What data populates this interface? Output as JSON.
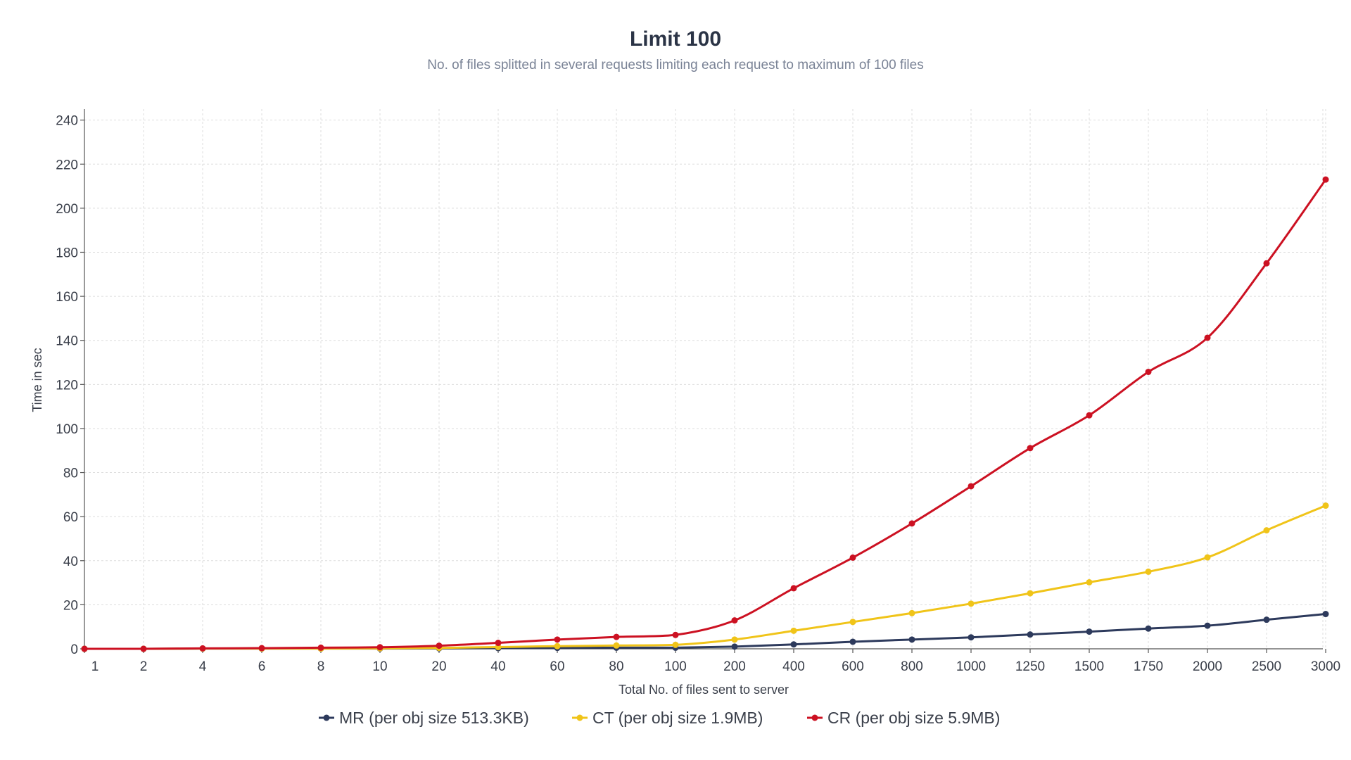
{
  "chart_data": {
    "type": "line",
    "title": "Limit 100",
    "subtitle": "No. of files splitted in several requests limiting each request to maximum of 100 files",
    "xlabel": "Total No. of files sent to server",
    "ylabel": "Time in sec",
    "ylim": [
      0,
      245
    ],
    "yticks": [
      0,
      20,
      40,
      60,
      80,
      100,
      120,
      140,
      160,
      180,
      200,
      220,
      240
    ],
    "grid": true,
    "legend_position": "bottom-center",
    "categories": [
      "1",
      "2",
      "4",
      "6",
      "8",
      "10",
      "20",
      "40",
      "60",
      "80",
      "100",
      "200",
      "400",
      "600",
      "800",
      "1000",
      "1250",
      "1500",
      "1750",
      "2000",
      "2500",
      "3000"
    ],
    "series": [
      {
        "name": "MR (per obj size 513.3KB)",
        "color": "#2d3a5c",
        "values": [
          0,
          0,
          0.1,
          0.1,
          0.1,
          0.1,
          0.2,
          0.3,
          0.4,
          0.5,
          0.5,
          1,
          2,
          3.2,
          4.2,
          5.2,
          6.5,
          7.8,
          9.2,
          10.5,
          13.2,
          15.8
        ]
      },
      {
        "name": "CT (per obj size 1.9MB)",
        "color": "#f0c419",
        "values": [
          0,
          0,
          0.1,
          0.1,
          0.1,
          0.2,
          0.4,
          0.8,
          1.2,
          1.5,
          1.8,
          4.2,
          8.2,
          12.2,
          16.2,
          20.5,
          25.2,
          30.2,
          35,
          41.5,
          53.8,
          65
        ]
      },
      {
        "name": "CR (per obj size 5.9MB)",
        "color": "#cc1122",
        "values": [
          0,
          0,
          0.2,
          0.3,
          0.5,
          0.7,
          1.4,
          2.7,
          4.2,
          5.4,
          6.3,
          12.9,
          27.5,
          41.4,
          56.9,
          73.8,
          91.1,
          106,
          125.7,
          141.2,
          175,
          213
        ]
      }
    ]
  }
}
